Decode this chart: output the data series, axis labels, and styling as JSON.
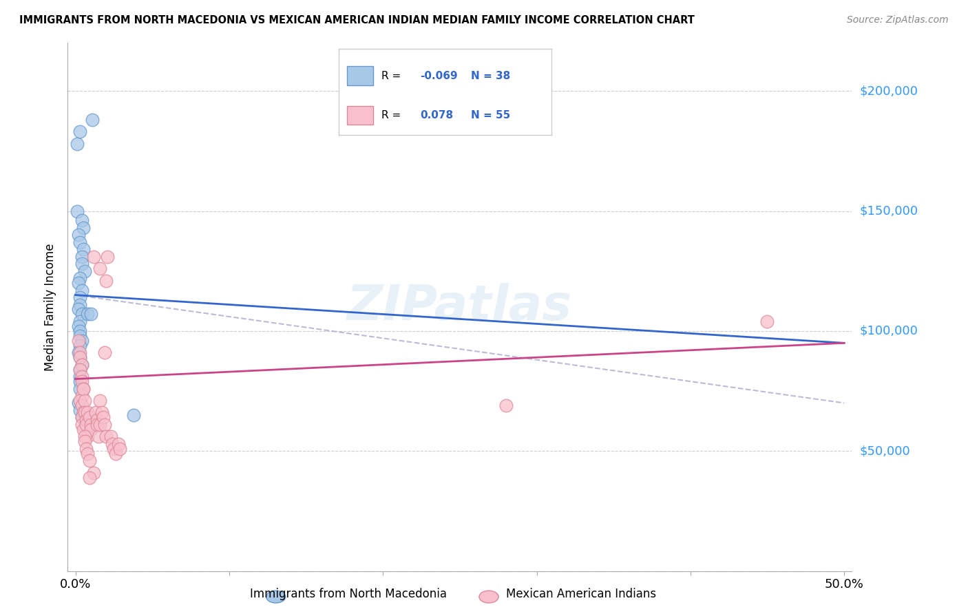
{
  "title": "IMMIGRANTS FROM NORTH MACEDONIA VS MEXICAN AMERICAN INDIAN MEDIAN FAMILY INCOME CORRELATION CHART",
  "source": "Source: ZipAtlas.com",
  "ylabel": "Median Family Income",
  "watermark": "ZIPatlas",
  "legend": {
    "blue_R": "-0.069",
    "blue_N": "38",
    "pink_R": "0.078",
    "pink_N": "55"
  },
  "xlim": [
    0,
    0.5
  ],
  "ylim": [
    0,
    220000
  ],
  "blue_color": "#a8c8e8",
  "blue_edge_color": "#6699cc",
  "blue_line_color": "#3366cc",
  "pink_color": "#f8c0cc",
  "pink_edge_color": "#dd8899",
  "pink_line_color": "#cc4488",
  "dashed_color": "#aaaacc",
  "grid_color": "#cccccc",
  "bg_color": "#ffffff",
  "right_label_color": "#3399ff",
  "blue_scatter": [
    [
      0.001,
      178000
    ],
    [
      0.003,
      183000
    ],
    [
      0.011,
      188000
    ],
    [
      0.001,
      150000
    ],
    [
      0.004,
      146000
    ],
    [
      0.005,
      143000
    ],
    [
      0.002,
      140000
    ],
    [
      0.003,
      137000
    ],
    [
      0.005,
      134000
    ],
    [
      0.004,
      131000
    ],
    [
      0.004,
      128000
    ],
    [
      0.006,
      125000
    ],
    [
      0.003,
      122000
    ],
    [
      0.002,
      120000
    ],
    [
      0.004,
      117000
    ],
    [
      0.003,
      114000
    ],
    [
      0.003,
      111000
    ],
    [
      0.002,
      109000
    ],
    [
      0.004,
      107000
    ],
    [
      0.003,
      104000
    ],
    [
      0.002,
      102000
    ],
    [
      0.003,
      100000
    ],
    [
      0.003,
      98000
    ],
    [
      0.004,
      96000
    ],
    [
      0.003,
      94000
    ],
    [
      0.002,
      91000
    ],
    [
      0.003,
      89000
    ],
    [
      0.004,
      86000
    ],
    [
      0.003,
      84000
    ],
    [
      0.003,
      81000
    ],
    [
      0.003,
      79000
    ],
    [
      0.003,
      76000
    ],
    [
      0.002,
      70000
    ],
    [
      0.003,
      67000
    ],
    [
      0.004,
      64000
    ],
    [
      0.008,
      107000
    ],
    [
      0.01,
      107000
    ],
    [
      0.038,
      65000
    ]
  ],
  "pink_scatter": [
    [
      0.002,
      96000
    ],
    [
      0.003,
      91000
    ],
    [
      0.003,
      89000
    ],
    [
      0.004,
      86000
    ],
    [
      0.003,
      84000
    ],
    [
      0.004,
      81000
    ],
    [
      0.004,
      79000
    ],
    [
      0.005,
      76000
    ],
    [
      0.004,
      73000
    ],
    [
      0.003,
      71000
    ],
    [
      0.004,
      69000
    ],
    [
      0.005,
      66000
    ],
    [
      0.004,
      64000
    ],
    [
      0.004,
      61000
    ],
    [
      0.005,
      59000
    ],
    [
      0.005,
      76000
    ],
    [
      0.006,
      71000
    ],
    [
      0.006,
      66000
    ],
    [
      0.007,
      63000
    ],
    [
      0.007,
      61000
    ],
    [
      0.008,
      56000
    ],
    [
      0.008,
      66000
    ],
    [
      0.009,
      64000
    ],
    [
      0.01,
      61000
    ],
    [
      0.01,
      59000
    ],
    [
      0.006,
      56000
    ],
    [
      0.006,
      54000
    ],
    [
      0.007,
      51000
    ],
    [
      0.008,
      49000
    ],
    [
      0.009,
      46000
    ],
    [
      0.012,
      41000
    ],
    [
      0.009,
      39000
    ],
    [
      0.013,
      66000
    ],
    [
      0.014,
      63000
    ],
    [
      0.014,
      61000
    ],
    [
      0.015,
      56000
    ],
    [
      0.016,
      61000
    ],
    [
      0.012,
      131000
    ],
    [
      0.016,
      126000
    ],
    [
      0.019,
      91000
    ],
    [
      0.02,
      121000
    ],
    [
      0.021,
      131000
    ],
    [
      0.016,
      71000
    ],
    [
      0.017,
      66000
    ],
    [
      0.018,
      64000
    ],
    [
      0.019,
      61000
    ],
    [
      0.02,
      56000
    ],
    [
      0.023,
      56000
    ],
    [
      0.024,
      53000
    ],
    [
      0.025,
      51000
    ],
    [
      0.026,
      49000
    ],
    [
      0.028,
      53000
    ],
    [
      0.029,
      51000
    ],
    [
      0.45,
      104000
    ],
    [
      0.28,
      69000
    ]
  ]
}
